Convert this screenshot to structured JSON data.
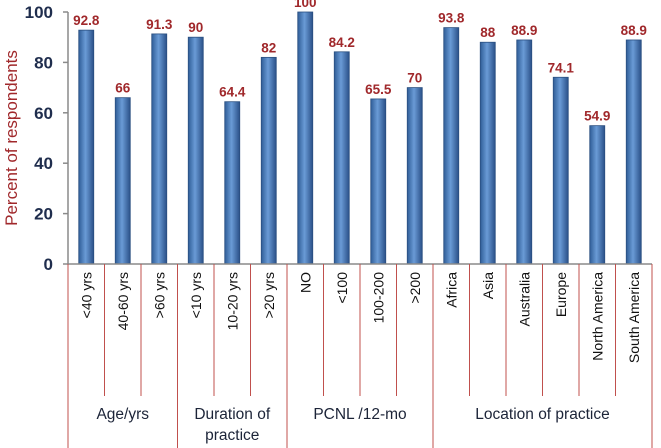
{
  "chart_data": {
    "type": "bar",
    "ylabel": "Percent of respondents",
    "ylim": [
      0,
      100
    ],
    "yticks": [
      0,
      20,
      40,
      60,
      80,
      100
    ],
    "categories": [
      "<40 yrs",
      "40-60 yrs",
      ">60 yrs",
      "<10 yrs",
      "10-20 yrs",
      ">20 yrs",
      "NO",
      "<100",
      "100-200",
      ">200",
      "Africa",
      "Asia",
      "Australia",
      "Europe",
      "North America",
      "South America"
    ],
    "values": [
      92.8,
      66,
      91.3,
      90,
      64.4,
      82,
      100,
      84.2,
      65.5,
      70,
      93.8,
      88,
      88.9,
      74.1,
      54.9,
      88.9
    ],
    "data_labels": [
      "92.8",
      "66",
      "91.3",
      "90",
      "64.4",
      "82",
      "100",
      "84.2",
      "65.5",
      "70",
      "93.8",
      "88",
      "88.9",
      "74.1",
      "54.9",
      "88.9"
    ],
    "groups": [
      {
        "label_lines": [
          "Age/yrs"
        ],
        "count": 3
      },
      {
        "label_lines": [
          "Duration of",
          "practice"
        ],
        "count": 3
      },
      {
        "label_lines": [
          "PCNL /12-mo"
        ],
        "count": 4
      },
      {
        "label_lines": [
          "Location of practice"
        ],
        "count": 6
      }
    ],
    "colors": {
      "bar": "#4a7ebb",
      "bar_edge": "#2a4f80",
      "data_label": "#a0282b",
      "axis_label": "#a0282b",
      "tick_label": "#1f2d4d",
      "divider": "#c0504d"
    },
    "grid": false
  }
}
